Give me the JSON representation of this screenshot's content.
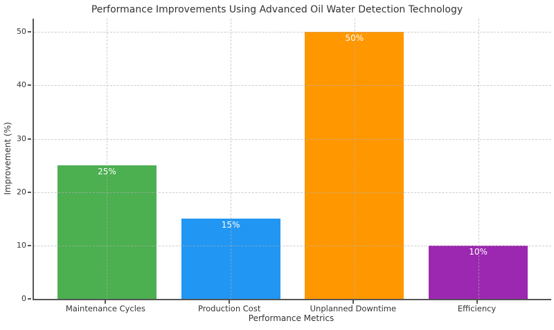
{
  "chart_data": {
    "type": "bar",
    "title": "Performance Improvements Using Advanced Oil Water Detection Technology",
    "xlabel": "Performance Metrics",
    "ylabel": "Improvement (%)",
    "categories": [
      "Maintenance Cycles",
      "Production Cost",
      "Unplanned Downtime",
      "Efficiency"
    ],
    "values": [
      25,
      15,
      50,
      10
    ],
    "bar_labels": [
      "25%",
      "15%",
      "50%",
      "10%"
    ],
    "bar_colors": [
      "#4caf50",
      "#2196f3",
      "#ff9800",
      "#9c27b0"
    ],
    "yticks": [
      0,
      10,
      20,
      30,
      40,
      50
    ],
    "ytick_labels": [
      "0",
      "10",
      "20",
      "30",
      "40",
      "50"
    ],
    "ylim": [
      0,
      52.5
    ],
    "xlim": [
      -0.59,
      3.59
    ],
    "bar_width": 0.8,
    "grid": {
      "style": "dashed",
      "color": "#b0b0b0",
      "alpha": 0.6,
      "axis": "both",
      "above_bars": true
    },
    "legend_position": "none",
    "background_color": "#ffffff",
    "axis_color": "#555555",
    "text_color": "#333333",
    "bar_label_text_color": "#ffffff"
  }
}
